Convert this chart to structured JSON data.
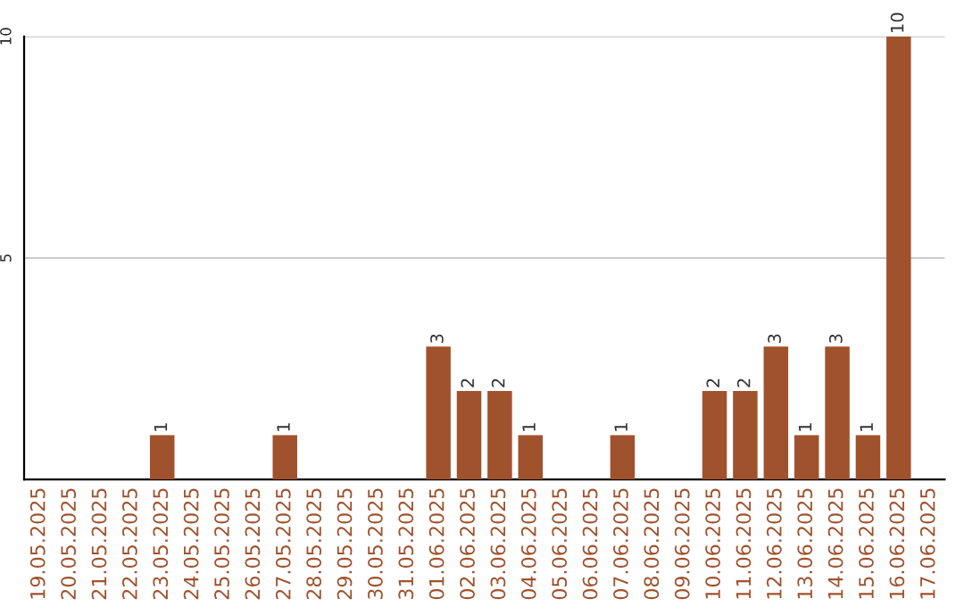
{
  "chart_data": {
    "type": "bar",
    "categories": [
      "19.05.2025",
      "20.05.2025",
      "21.05.2025",
      "22.05.2025",
      "23.05.2025",
      "24.05.2025",
      "25.05.2025",
      "26.05.2025",
      "27.05.2025",
      "28.05.2025",
      "29.05.2025",
      "30.05.2025",
      "31.05.2025",
      "01.06.2025",
      "02.06.2025",
      "03.06.2025",
      "04.06.2025",
      "05.06.2025",
      "06.06.2025",
      "07.06.2025",
      "08.06.2025",
      "09.06.2025",
      "10.06.2025",
      "11.06.2025",
      "12.06.2025",
      "13.06.2025",
      "14.06.2025",
      "15.06.2025",
      "16.06.2025",
      "17.06.2025"
    ],
    "values": [
      0,
      0,
      0,
      0,
      1,
      0,
      0,
      0,
      1,
      0,
      0,
      0,
      0,
      3,
      2,
      2,
      1,
      0,
      0,
      1,
      0,
      0,
      2,
      2,
      3,
      1,
      3,
      1,
      10,
      0
    ],
    "value_labels": [
      null,
      null,
      null,
      null,
      "1",
      null,
      null,
      null,
      "1",
      null,
      null,
      null,
      null,
      "3",
      "2",
      "2",
      "1",
      null,
      null,
      "1",
      null,
      null,
      "2",
      "2",
      "3",
      "1",
      "3",
      "1",
      "10",
      null
    ],
    "color": "#a0522d",
    "ylim": [
      0,
      10
    ],
    "yticks": [
      5,
      10
    ],
    "grid": "y"
  }
}
